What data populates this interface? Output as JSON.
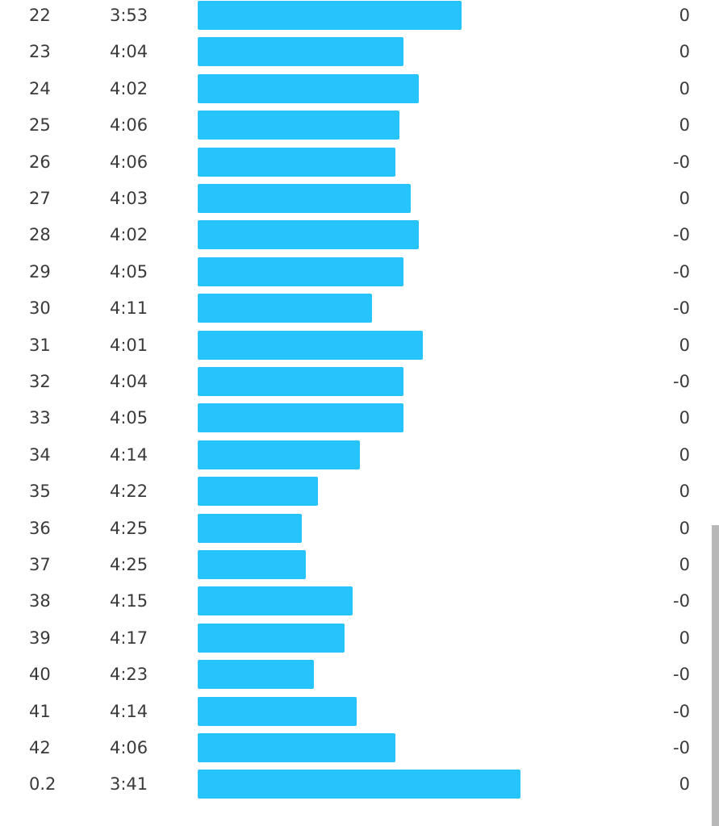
{
  "colors": {
    "bar": "#27c3fd",
    "text": "#3a3a3a",
    "scrollbar": "#b8b8b8"
  },
  "splits": [
    {
      "km": "22",
      "pace": "3:53",
      "elevation": "0",
      "bar_fraction": 0.817
    },
    {
      "km": "23",
      "pace": "4:04",
      "elevation": "0",
      "bar_fraction": 0.637
    },
    {
      "km": "24",
      "pace": "4:02",
      "elevation": "0",
      "bar_fraction": 0.685
    },
    {
      "km": "25",
      "pace": "4:06",
      "elevation": "0",
      "bar_fraction": 0.625
    },
    {
      "km": "26",
      "pace": "4:06",
      "elevation": "-0",
      "bar_fraction": 0.612
    },
    {
      "km": "27",
      "pace": "4:03",
      "elevation": "0",
      "bar_fraction": 0.66
    },
    {
      "km": "28",
      "pace": "4:02",
      "elevation": "-0",
      "bar_fraction": 0.685
    },
    {
      "km": "29",
      "pace": "4:05",
      "elevation": "-0",
      "bar_fraction": 0.637
    },
    {
      "km": "30",
      "pace": "4:11",
      "elevation": "-0",
      "bar_fraction": 0.54
    },
    {
      "km": "31",
      "pace": "4:01",
      "elevation": "0",
      "bar_fraction": 0.697
    },
    {
      "km": "32",
      "pace": "4:04",
      "elevation": "-0",
      "bar_fraction": 0.637
    },
    {
      "km": "33",
      "pace": "4:05",
      "elevation": "0",
      "bar_fraction": 0.637
    },
    {
      "km": "34",
      "pace": "4:14",
      "elevation": "0",
      "bar_fraction": 0.502
    },
    {
      "km": "35",
      "pace": "4:22",
      "elevation": "0",
      "bar_fraction": 0.372
    },
    {
      "km": "36",
      "pace": "4:25",
      "elevation": "0",
      "bar_fraction": 0.322
    },
    {
      "km": "37",
      "pace": "4:25",
      "elevation": "0",
      "bar_fraction": 0.335
    },
    {
      "km": "38",
      "pace": "4:15",
      "elevation": "-0",
      "bar_fraction": 0.48
    },
    {
      "km": "39",
      "pace": "4:17",
      "elevation": "0",
      "bar_fraction": 0.455
    },
    {
      "km": "40",
      "pace": "4:23",
      "elevation": "-0",
      "bar_fraction": 0.36
    },
    {
      "km": "41",
      "pace": "4:14",
      "elevation": "-0",
      "bar_fraction": 0.492
    },
    {
      "km": "42",
      "pace": "4:06",
      "elevation": "-0",
      "bar_fraction": 0.612
    },
    {
      "km": "0.2",
      "pace": "3:41",
      "elevation": "0",
      "bar_fraction": 1.0
    }
  ]
}
